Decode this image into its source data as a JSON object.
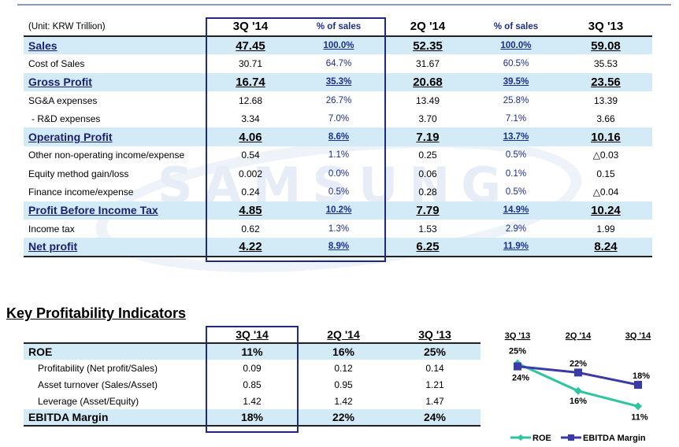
{
  "income_statement": {
    "unit_label": "(Unit: KRW Trillion)",
    "columns": [
      "3Q '14",
      "% of sales",
      "2Q '14",
      "% of sales",
      "3Q '13"
    ],
    "rows": [
      {
        "label": "Sales",
        "q3_14": "47.45",
        "pct_q3_14": "100.0%",
        "q2_14": "52.35",
        "pct_q2_14": "100.0%",
        "q3_13": "59.08"
      },
      {
        "label": "Cost of Sales",
        "q3_14": "30.71",
        "pct_q3_14": "64.7%",
        "q2_14": "31.67",
        "pct_q2_14": "60.5%",
        "q3_13": "35.53"
      },
      {
        "label": "Gross Profit",
        "q3_14": "16.74",
        "pct_q3_14": "35.3%",
        "q2_14": "20.68",
        "pct_q2_14": "39.5%",
        "q3_13": "23.56"
      },
      {
        "label": "SG&A expenses",
        "q3_14": "12.68",
        "pct_q3_14": "26.7%",
        "q2_14": "13.49",
        "pct_q2_14": "25.8%",
        "q3_13": "13.39"
      },
      {
        "label": "- R&D expenses",
        "q3_14": "3.34",
        "pct_q3_14": "7.0%",
        "q2_14": "3.70",
        "pct_q2_14": "7.1%",
        "q3_13": "3.66"
      },
      {
        "label": "Operating Profit",
        "q3_14": "4.06",
        "pct_q3_14": "8.6%",
        "q2_14": "7.19",
        "pct_q2_14": "13.7%",
        "q3_13": "10.16"
      },
      {
        "label": "Other non-operating income/expense",
        "q3_14": "0.54",
        "pct_q3_14": "1.1%",
        "q2_14": "0.25",
        "pct_q2_14": "0.5%",
        "q3_13": "△0.03"
      },
      {
        "label": "Equity method gain/loss",
        "q3_14": "0.002",
        "pct_q3_14": "0.0%",
        "q2_14": "0.06",
        "pct_q2_14": "0.1%",
        "q3_13": "0.15"
      },
      {
        "label": "Finance income/expense",
        "q3_14": "0.24",
        "pct_q3_14": "0.5%",
        "q2_14": "0.28",
        "pct_q2_14": "0.5%",
        "q3_13": "△0.04"
      },
      {
        "label": "Profit Before Income Tax",
        "q3_14": "4.85",
        "pct_q3_14": "10.2%",
        "q2_14": "7.79",
        "pct_q2_14": "14.9%",
        "q3_13": "10.24"
      },
      {
        "label": "Income tax",
        "q3_14": "0.62",
        "pct_q3_14": "1.3%",
        "q2_14": "1.53",
        "pct_q2_14": "2.9%",
        "q3_13": "1.99"
      },
      {
        "label": "Net profit",
        "q3_14": "4.22",
        "pct_q3_14": "8.9%",
        "q2_14": "6.25",
        "pct_q2_14": "11.9%",
        "q3_13": "8.24"
      }
    ]
  },
  "watermark": "SAMSUNG",
  "kpi": {
    "title": "Key Profitability Indicators",
    "columns": [
      "3Q '14",
      "2Q '14",
      "3Q '13"
    ],
    "rows": [
      {
        "label": "ROE",
        "q3_14": "11%",
        "q2_14": "16%",
        "q3_13": "25%"
      },
      {
        "label": "Profitability (Net profit/Sales)",
        "q3_14": "0.09",
        "q2_14": "0.12",
        "q3_13": "0.14"
      },
      {
        "label": "Asset turnover (Sales/Asset)",
        "q3_14": "0.85",
        "q2_14": "0.95",
        "q3_13": "1.21"
      },
      {
        "label": "Leverage (Asset/Equity)",
        "q3_14": "1.42",
        "q2_14": "1.42",
        "q3_13": "1.47"
      },
      {
        "label": "EBITDA Margin",
        "q3_14": "18%",
        "q2_14": "22%",
        "q3_13": "24%"
      }
    ]
  },
  "chart_data": {
    "type": "line",
    "categories": [
      "3Q '13",
      "2Q '14",
      "3Q '14"
    ],
    "series": [
      {
        "name": "ROE",
        "values": [
          25,
          16,
          11
        ],
        "color": "#2ec4a0"
      },
      {
        "name": "EBITDA Margin",
        "values": [
          24,
          22,
          18
        ],
        "color": "#3a3aa8"
      }
    ],
    "data_labels": {
      "ROE": [
        "25%",
        "16%",
        "11%"
      ],
      "EBITDA Margin": [
        "24%",
        "22%",
        "18%"
      ]
    },
    "legend": [
      "ROE",
      "EBITDA Margin"
    ],
    "ylim": [
      8,
      28
    ]
  }
}
